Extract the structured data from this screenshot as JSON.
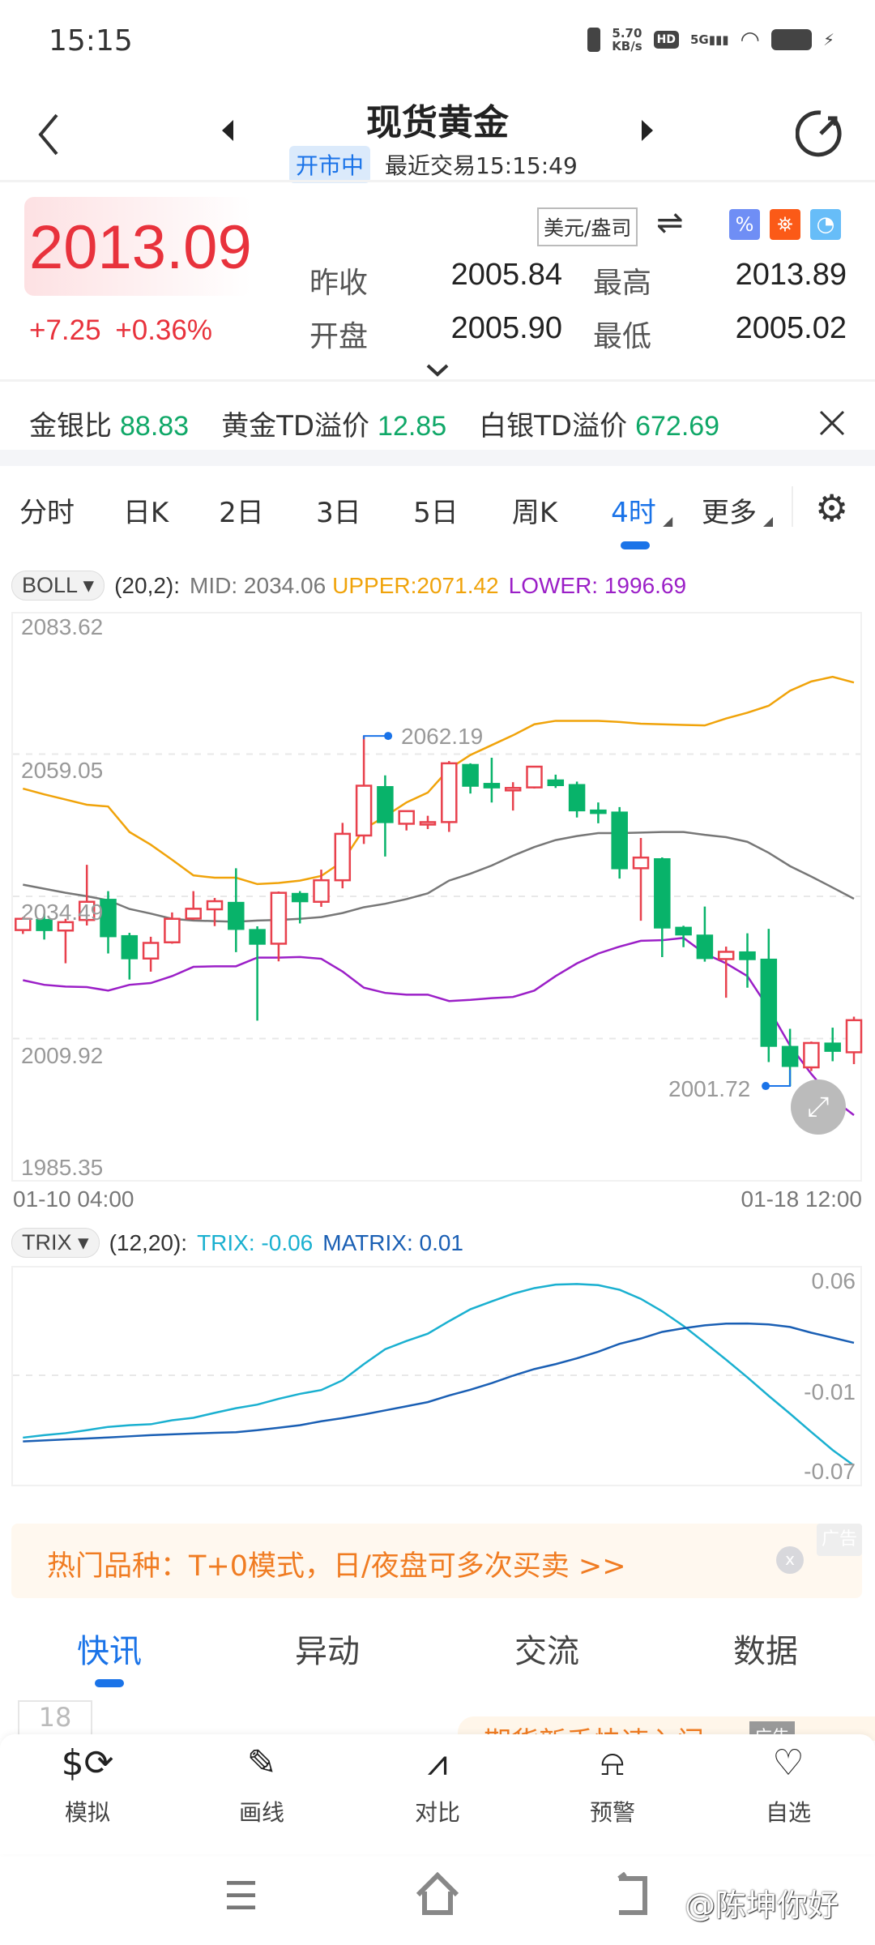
{
  "status": {
    "time": "15:15",
    "speed_value": "5.70",
    "speed_unit": "KB/s",
    "hd": "HD",
    "network": "5G"
  },
  "header": {
    "title": "现货黄金",
    "badge": "开市中",
    "last_trade": "最近交易15:15:49"
  },
  "quote": {
    "price": "2013.09",
    "change": "+7.25",
    "change_pct": "+0.36%",
    "unit": "美元/盎司",
    "prev_close_label": "昨收",
    "prev_close": "2005.84",
    "high_label": "最高",
    "high": "2013.89",
    "open_label": "开盘",
    "open": "2005.90",
    "low_label": "最低",
    "low": "2005.02"
  },
  "ratios": [
    {
      "label": "金银比",
      "value": "88.83"
    },
    {
      "label": "黄金TD溢价",
      "value": "12.85"
    },
    {
      "label": "白银TD溢价",
      "value": "672.69"
    }
  ],
  "period_tabs": [
    {
      "label": "分时"
    },
    {
      "label": "日K"
    },
    {
      "label": "2日"
    },
    {
      "label": "3日"
    },
    {
      "label": "5日"
    },
    {
      "label": "周K"
    },
    {
      "label": "4时",
      "active": true
    },
    {
      "label": "更多"
    }
  ],
  "boll": {
    "name": "BOLL",
    "params": "(20,2):",
    "mid": "MID: 2034.06",
    "upper": "UPPER:2071.42",
    "lower": "LOWER: 1996.69"
  },
  "trix": {
    "name": "TRIX",
    "params": "(12,20):",
    "trix": "TRIX: -0.06",
    "matrix": "MATRIX: 0.01"
  },
  "colors": {
    "up": "#e8414d",
    "down": "#08b36a",
    "upper": "#f0a30a",
    "mid": "#777777",
    "lower": "#9b1fc7",
    "trix": "#1ab0d0",
    "matrix": "#1a5fb4",
    "accent": "#1a73e8"
  },
  "chart_data": [
    {
      "type": "candlestick",
      "title": "",
      "y_ticks": [
        "2083.62",
        "2059.05",
        "2034.49",
        "2009.92",
        "1985.35"
      ],
      "ylim": [
        1985.35,
        2083.62
      ],
      "x_start": "01-10 04:00",
      "x_end": "01-18 12:00",
      "grid": true,
      "high_marker": "2062.19",
      "low_marker": "2001.72",
      "ohlc": [
        [
          2028.66,
          2030.89,
          2027.99,
          2030.6
        ],
        [
          2030.4,
          2031.5,
          2027.02,
          2028.66
        ],
        [
          2028.57,
          2030.6,
          2022.92,
          2030.02
        ],
        [
          2030.4,
          2039.92,
          2029.44,
          2033.54
        ],
        [
          2033.88,
          2035.38,
          2024.61,
          2027.6
        ],
        [
          2027.6,
          2028.18,
          2020.11,
          2023.79
        ],
        [
          2023.74,
          2027.5,
          2021.47,
          2026.44
        ],
        [
          2026.54,
          2031.7,
          2026.3,
          2030.6
        ],
        [
          2030.65,
          2035.38,
          2030.4,
          2032.34
        ],
        [
          2032.24,
          2034.2,
          2029.34,
          2033.64
        ],
        [
          2033.35,
          2039.34,
          2024.85,
          2028.86
        ],
        [
          2028.66,
          2029.3,
          2013.01,
          2026.3
        ],
        [
          2026.3,
          2035.33,
          2023.25,
          2035.09
        ],
        [
          2034.9,
          2035.38,
          2029.8,
          2033.64
        ],
        [
          2033.54,
          2039.1,
          2032.67,
          2037.26
        ],
        [
          2037.26,
          2047.17,
          2035.86,
          2045.28
        ],
        [
          2044.99,
          2062.19,
          2043.54,
          2053.59
        ],
        [
          2053.35,
          2055.38,
          2041.37,
          2047.31
        ],
        [
          2047.02,
          2049.2,
          2045.86,
          2049.2
        ],
        [
          2047.2,
          2048.4,
          2046.1,
          2047.3
        ],
        [
          2047.31,
          2057.84,
          2045.62,
          2057.46
        ],
        [
          2057.17,
          2057.46,
          2052.24,
          2053.59
        ],
        [
          2053.9,
          2058.42,
          2050.69,
          2053.3
        ],
        [
          2053.0,
          2054.2,
          2049.3,
          2053.2
        ],
        [
          2053.3,
          2057.0,
          2053.1,
          2056.88
        ],
        [
          2054.5,
          2055.5,
          2053.2,
          2053.7
        ],
        [
          2053.7,
          2054.3,
          2048.1,
          2049.34
        ],
        [
          2049.3,
          2050.7,
          2047.1,
          2049.2
        ],
        [
          2048.95,
          2049.9,
          2037.55,
          2039.34
        ],
        [
          2039.34,
          2044.56,
          2030.26,
          2041.18
        ],
        [
          2040.89,
          2041.2,
          2023.98,
          2029.1
        ],
        [
          2029.05,
          2029.4,
          2025.7,
          2027.9
        ],
        [
          2027.7,
          2032.72,
          2023.2,
          2023.83
        ],
        [
          2023.64,
          2025.8,
          2016.97,
          2024.9
        ],
        [
          2024.8,
          2028.1,
          2018.7,
          2023.64
        ],
        [
          2023.54,
          2028.86,
          2005.86,
          2008.66
        ],
        [
          2008.47,
          2011.6,
          2001.72,
          2005.19
        ],
        [
          2004.94,
          2009.4,
          2004.3,
          2009.15
        ],
        [
          2009.05,
          2011.8,
          2006.0,
          2007.8
        ],
        [
          2007.55,
          2013.7,
          2005.5,
          2013.09
        ]
      ],
      "series": [
        {
          "name": "UPPER",
          "values": [
            2053.1,
            2052.1,
            2051.2,
            2050.3,
            2050.0,
            2045.6,
            2043.4,
            2040.8,
            2038.1,
            2037.7,
            2037.7,
            2036.6,
            2036.8,
            2037.2,
            2038.0,
            2040.5,
            2046.1,
            2048.3,
            2050.7,
            2052.4,
            2056.5,
            2058.9,
            2060.6,
            2062.3,
            2064.2,
            2064.8,
            2064.8,
            2064.8,
            2064.6,
            2064.3,
            2064.2,
            2064.1,
            2064.0,
            2065.2,
            2066.2,
            2067.4,
            2070.0,
            2071.6,
            2072.4,
            2071.42
          ]
        },
        {
          "name": "MID",
          "values": [
            2036.5,
            2035.8,
            2035.1,
            2034.5,
            2033.8,
            2032.3,
            2031.5,
            2030.6,
            2030.3,
            2030.2,
            2030.1,
            2030.3,
            2030.4,
            2030.6,
            2030.9,
            2031.6,
            2032.6,
            2033.2,
            2034.0,
            2035.0,
            2037.2,
            2038.4,
            2039.8,
            2041.5,
            2043.0,
            2044.2,
            2044.9,
            2045.4,
            2045.4,
            2045.5,
            2045.6,
            2045.6,
            2045.1,
            2044.7,
            2043.9,
            2042.0,
            2039.7,
            2037.9,
            2036.0,
            2034.06
          ]
        },
        {
          "name": "LOWER",
          "values": [
            2020.0,
            2019.2,
            2018.9,
            2018.8,
            2018.2,
            2019.2,
            2019.5,
            2020.7,
            2022.3,
            2022.4,
            2022.4,
            2023.9,
            2023.9,
            2024.0,
            2023.7,
            2021.5,
            2018.7,
            2017.8,
            2017.5,
            2017.5,
            2016.4,
            2016.6,
            2016.9,
            2017.1,
            2018.2,
            2020.7,
            2022.9,
            2024.6,
            2025.8,
            2026.8,
            2026.9,
            2027.3,
            2024.6,
            2022.9,
            2020.7,
            2015.1,
            2008.7,
            2003.8,
            1999.5,
            1996.69
          ]
        }
      ]
    },
    {
      "type": "line",
      "title": "",
      "y_ticks": [
        "0.06",
        "-0.01",
        "-0.07"
      ],
      "ylim": [
        -0.07,
        0.06
      ],
      "grid": true,
      "series": [
        {
          "name": "TRIX",
          "values": [
            -0.0425,
            -0.041,
            -0.0398,
            -0.038,
            -0.036,
            -0.035,
            -0.0344,
            -0.032,
            -0.0305,
            -0.0275,
            -0.0247,
            -0.0225,
            -0.019,
            -0.016,
            -0.0137,
            -0.0078,
            0.002,
            0.011,
            0.016,
            0.0204,
            0.028,
            0.0352,
            0.04,
            0.0446,
            0.048,
            0.0501,
            0.0505,
            0.0498,
            0.047,
            0.0415,
            0.034,
            0.0251,
            0.015,
            0.0047,
            -0.006,
            -0.0172,
            -0.028,
            -0.0391,
            -0.05,
            -0.0594
          ]
        },
        {
          "name": "MATRIX",
          "values": [
            -0.0448,
            -0.0442,
            -0.0436,
            -0.043,
            -0.0424,
            -0.0417,
            -0.041,
            -0.0405,
            -0.04,
            -0.0396,
            -0.0392,
            -0.038,
            -0.0365,
            -0.035,
            -0.0326,
            -0.0307,
            -0.0285,
            -0.026,
            -0.0235,
            -0.021,
            -0.017,
            -0.0135,
            -0.0095,
            -0.005,
            -0.001,
            0.002,
            0.0055,
            0.0095,
            0.0143,
            0.0175,
            0.0215,
            0.0237,
            0.0255,
            0.0265,
            0.0266,
            0.026,
            0.0245,
            0.021,
            0.018,
            0.0149
          ]
        }
      ]
    }
  ],
  "ad": {
    "text": "热门品种：T+0模式，日/夜盘可多次买卖 >>",
    "tag": "广告",
    "close": "x"
  },
  "news_tabs": [
    {
      "label": "快讯",
      "active": true
    },
    {
      "label": "异动"
    },
    {
      "label": "交流"
    },
    {
      "label": "数据"
    }
  ],
  "news": {
    "date": "18",
    "ad_text": "期货新手快速入门",
    "ad_tag": "广告"
  },
  "toolbar": [
    {
      "label": "模拟",
      "icon": "dollar-cycle-icon"
    },
    {
      "label": "画线",
      "icon": "pen-icon"
    },
    {
      "label": "对比",
      "icon": "compare-chart-icon"
    },
    {
      "label": "预警",
      "icon": "alarm-icon"
    },
    {
      "label": "自选",
      "icon": "heart-plus-icon"
    }
  ],
  "watermark": "@陈坤你好"
}
